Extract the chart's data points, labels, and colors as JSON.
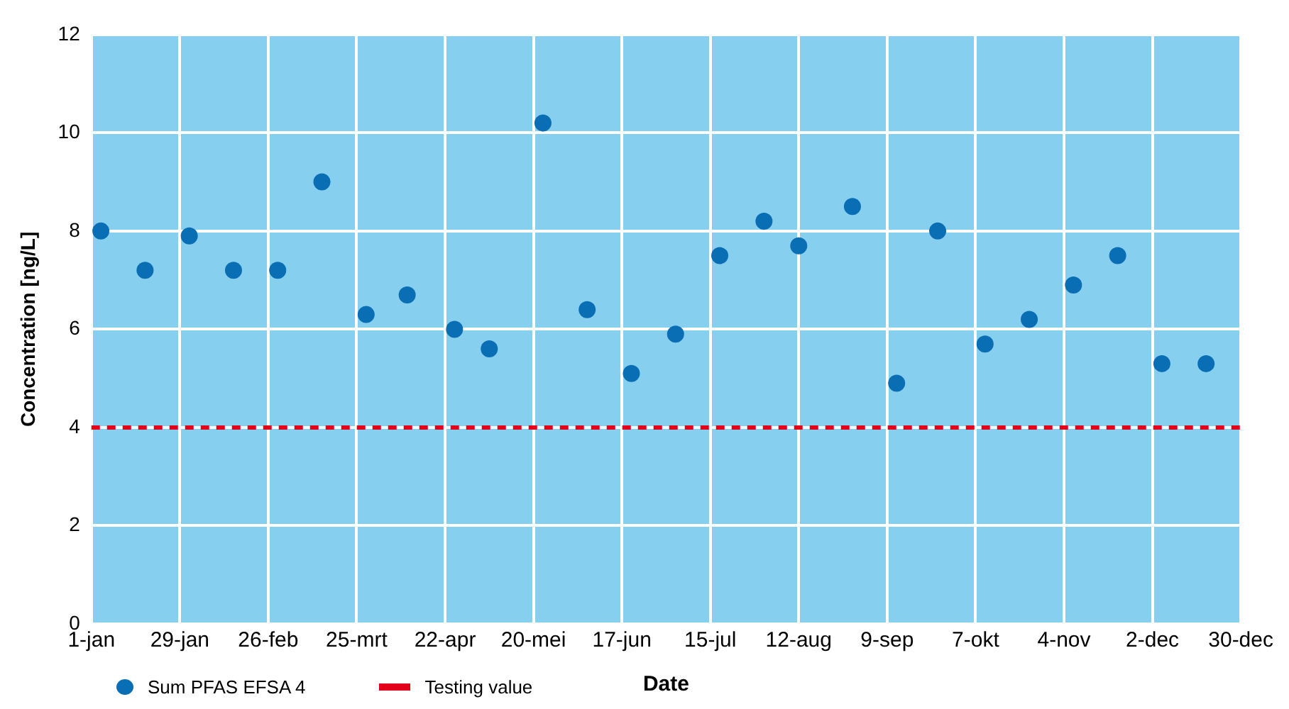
{
  "chart_data": {
    "type": "scatter",
    "xlabel": "Date",
    "ylabel": "Concentration [ng/L]",
    "x": [
      "--01-04",
      "--01-18",
      "--02-01",
      "--02-15",
      "--02-29",
      "--03-14",
      "--03-28",
      "--04-10",
      "--04-25",
      "--05-06",
      "--05-23",
      "--06-06",
      "--06-20",
      "--07-04",
      "--07-18",
      "--08-01",
      "--08-12",
      "--08-29",
      "--09-12",
      "--09-25",
      "--10-10",
      "--10-24",
      "--11-07",
      "--11-21",
      "--12-05",
      "--12-19"
    ],
    "series": [
      {
        "name": "Sum PFAS EFSA 4",
        "color": "#0a6eb4",
        "values": [
          8.0,
          7.2,
          7.9,
          7.2,
          7.2,
          9.0,
          6.3,
          6.7,
          6.0,
          5.6,
          10.2,
          6.4,
          5.1,
          5.9,
          7.5,
          8.2,
          7.7,
          8.5,
          4.9,
          8.0,
          5.7,
          6.2,
          6.9,
          7.5,
          5.3,
          5.3
        ]
      }
    ],
    "xlim": [
      "--01-01",
      "--12-30"
    ],
    "xticks": [
      {
        "value": "--01-01",
        "label": "1-jan"
      },
      {
        "value": "--01-29",
        "label": "29-jan"
      },
      {
        "value": "--02-26",
        "label": "26-feb"
      },
      {
        "value": "--03-25",
        "label": "25-mrt"
      },
      {
        "value": "--04-22",
        "label": "22-apr"
      },
      {
        "value": "--05-20",
        "label": "20-mei"
      },
      {
        "value": "--06-17",
        "label": "17-jun"
      },
      {
        "value": "--07-15",
        "label": "15-jul"
      },
      {
        "value": "--08-12",
        "label": "12-aug"
      },
      {
        "value": "--09-09",
        "label": "9-sep"
      },
      {
        "value": "--10-07",
        "label": "7-okt"
      },
      {
        "value": "--11-04",
        "label": "4-nov"
      },
      {
        "value": "--12-02",
        "label": "2-dec"
      },
      {
        "value": "--12-30",
        "label": "30-dec"
      }
    ],
    "ylim": [
      0,
      12
    ],
    "yticks": [
      0,
      2,
      4,
      6,
      8,
      10,
      12
    ],
    "ref_lines": [
      {
        "axis": "y",
        "value": 4,
        "label": "Testing value",
        "color": "#e3001b",
        "line_style": "dashed"
      }
    ],
    "grid": true,
    "legend": "bottom left",
    "marker": "circle"
  }
}
